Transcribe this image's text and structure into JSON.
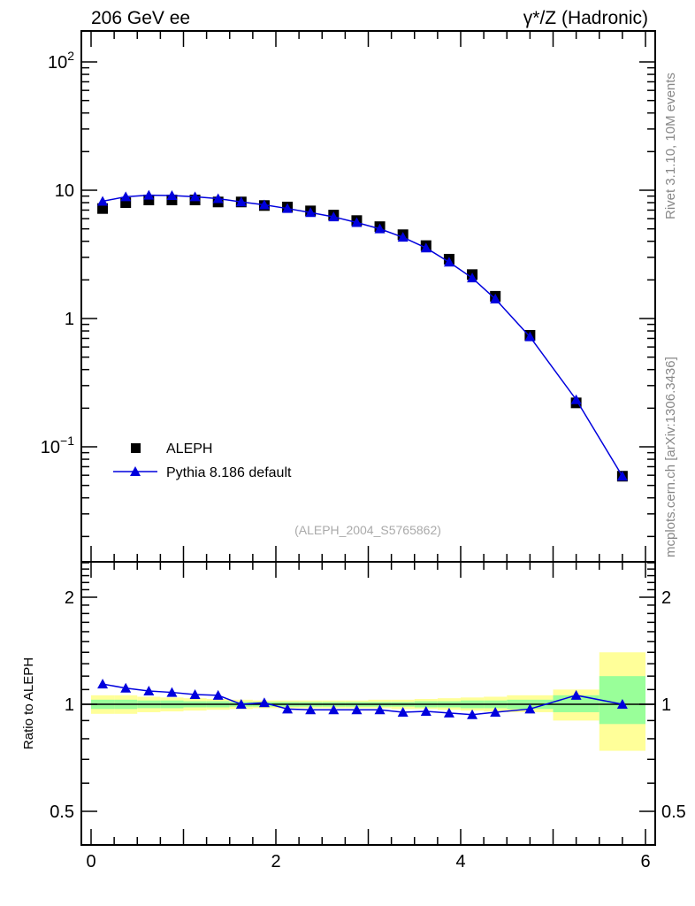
{
  "header": {
    "left_title": "206 GeV ee",
    "right_title": "γ*/Z (Hadronic)",
    "side_text_top": "Rivet 3.1.10,  10M events",
    "side_text_bottom": "mcplots.cern.ch [arXiv:1306.3436]",
    "watermark": "(ALEPH_2004_S5765862)"
  },
  "chart_data": [
    {
      "type": "scatter",
      "panel": "main",
      "yscale": "log",
      "xlim": [
        -0.1,
        6.1
      ],
      "ylim": [
        0.0135,
        170
      ],
      "ytick_labels": [
        "10^-1",
        "1",
        "10",
        "10^2"
      ],
      "ytick_values": [
        0.1,
        1,
        10,
        100
      ],
      "legend": {
        "placement": "lower-left",
        "entries": [
          "ALEPH",
          "Pythia 8.186 default"
        ]
      },
      "x": [
        0.125,
        0.375,
        0.625,
        0.875,
        1.125,
        1.375,
        1.625,
        1.875,
        2.125,
        2.375,
        2.625,
        2.875,
        3.125,
        3.375,
        3.625,
        3.875,
        4.125,
        4.375,
        4.75,
        5.25,
        5.75
      ],
      "series": [
        {
          "name": "ALEPH",
          "color": "#000000",
          "marker": "square",
          "values": [
            7.2,
            8.0,
            8.4,
            8.4,
            8.4,
            8.1,
            8.1,
            7.6,
            7.4,
            6.9,
            6.4,
            5.8,
            5.2,
            4.5,
            3.7,
            2.9,
            2.2,
            1.49,
            0.74,
            0.22,
            0.059
          ]
        },
        {
          "name": "Pythia 8.186 default",
          "color": "#0000dd",
          "marker": "triangle",
          "values": [
            8.2,
            8.9,
            9.15,
            9.1,
            8.9,
            8.6,
            8.1,
            7.7,
            7.2,
            6.7,
            6.2,
            5.6,
            5.0,
            4.3,
            3.55,
            2.75,
            2.07,
            1.42,
            0.72,
            0.233,
            0.059
          ]
        }
      ]
    },
    {
      "type": "line",
      "panel": "ratio",
      "yscale": "log",
      "ylabel": "Ratio to ALEPH",
      "xlim": [
        -0.1,
        6.1
      ],
      "ylim": [
        0.4,
        2.5
      ],
      "ytick_labels": [
        "0.5",
        "1",
        "2"
      ],
      "ytick_values": [
        0.5,
        1,
        2
      ],
      "xtick_labels": [
        "0",
        "2",
        "4",
        "6"
      ],
      "xtick_values": [
        0,
        2,
        4,
        6
      ],
      "bin_edges": [
        0,
        0.25,
        0.5,
        0.75,
        1,
        1.25,
        1.5,
        1.75,
        2,
        2.25,
        2.5,
        2.75,
        3,
        3.25,
        3.5,
        3.75,
        4,
        4.25,
        4.5,
        5,
        5.5,
        6
      ],
      "band_yellow": [
        [
          0.94,
          1.06
        ],
        [
          0.94,
          1.06
        ],
        [
          0.95,
          1.05
        ],
        [
          0.955,
          1.045
        ],
        [
          0.96,
          1.04
        ],
        [
          0.965,
          1.035
        ],
        [
          0.97,
          1.03
        ],
        [
          0.975,
          1.025
        ],
        [
          0.975,
          1.025
        ],
        [
          0.975,
          1.025
        ],
        [
          0.975,
          1.025
        ],
        [
          0.975,
          1.025
        ],
        [
          0.975,
          1.03
        ],
        [
          0.97,
          1.03
        ],
        [
          0.97,
          1.035
        ],
        [
          0.965,
          1.04
        ],
        [
          0.96,
          1.045
        ],
        [
          0.955,
          1.05
        ],
        [
          0.95,
          1.06
        ],
        [
          0.9,
          1.1
        ],
        [
          0.74,
          1.4
        ]
      ],
      "band_green": [
        [
          0.97,
          1.03
        ],
        [
          0.97,
          1.03
        ],
        [
          0.975,
          1.025
        ],
        [
          0.975,
          1.025
        ],
        [
          0.98,
          1.02
        ],
        [
          0.98,
          1.02
        ],
        [
          0.985,
          1.015
        ],
        [
          0.985,
          1.015
        ],
        [
          0.985,
          1.015
        ],
        [
          0.985,
          1.015
        ],
        [
          0.985,
          1.015
        ],
        [
          0.985,
          1.015
        ],
        [
          0.985,
          1.015
        ],
        [
          0.985,
          1.015
        ],
        [
          0.98,
          1.02
        ],
        [
          0.98,
          1.02
        ],
        [
          0.975,
          1.025
        ],
        [
          0.975,
          1.025
        ],
        [
          0.97,
          1.03
        ],
        [
          0.95,
          1.06
        ],
        [
          0.88,
          1.2
        ]
      ],
      "band_colors": {
        "yellow": "#ffff99",
        "green": "#99ff99"
      },
      "series": [
        {
          "name": "Pythia 8.186 default",
          "color": "#0000dd",
          "values": [
            1.14,
            1.11,
            1.09,
            1.08,
            1.065,
            1.06,
            1.0,
            1.01,
            0.97,
            0.965,
            0.965,
            0.965,
            0.965,
            0.95,
            0.955,
            0.945,
            0.935,
            0.95,
            0.97,
            1.06,
            1.0
          ]
        }
      ]
    }
  ]
}
